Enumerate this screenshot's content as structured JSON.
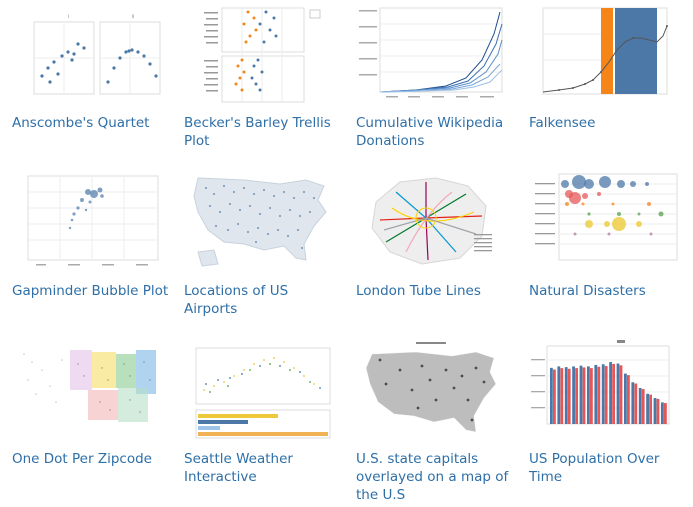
{
  "gallery": {
    "items": [
      {
        "title": "Anscombe's Quartet"
      },
      {
        "title": "Becker's Barley Trellis Plot"
      },
      {
        "title": "Cumulative Wikipedia Donations"
      },
      {
        "title": "Falkensee"
      },
      {
        "title": "Gapminder Bubble Plot"
      },
      {
        "title": "Locations of US Airports"
      },
      {
        "title": "London Tube Lines"
      },
      {
        "title": "Natural Disasters"
      },
      {
        "title": "One Dot Per Zipcode"
      },
      {
        "title": "Seattle Weather Interactive"
      },
      {
        "title": "U.S. state capitals overlayed on a map of the U.S"
      },
      {
        "title": "US Population Over Time"
      }
    ]
  },
  "colors": {
    "link": "#2e6fa7",
    "blue": "#4c78a8",
    "orange": "#f58518",
    "red": "#e45756"
  }
}
